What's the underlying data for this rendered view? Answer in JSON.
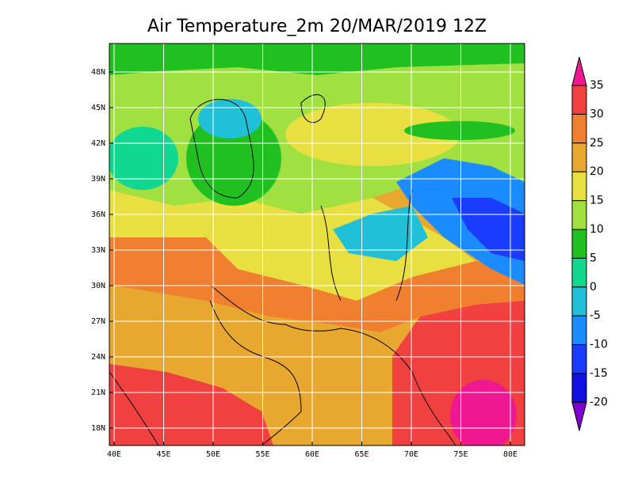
{
  "title": "Air Temperature_2m 20/MAR/2019 12Z",
  "lon_ticks": [
    "40E",
    "45E",
    "50E",
    "55E",
    "60E",
    "65E",
    "70E",
    "75E",
    "80E"
  ],
  "lat_ticks": [
    "48N",
    "45N",
    "42N",
    "39N",
    "36N",
    "33N",
    "30N",
    "27N",
    "24N",
    "21N",
    "18N"
  ],
  "colorbar": {
    "labels": [
      "35",
      "30",
      "25",
      "20",
      "15",
      "10",
      "5",
      "0",
      "-5",
      "-10",
      "-15",
      "-20"
    ],
    "colors": [
      "#f01890",
      "#f04040",
      "#f08030",
      "#e8a830",
      "#e8e040",
      "#a0e040",
      "#20c020",
      "#10d890",
      "#20c0d8",
      "#1a8cff",
      "#1a3cff",
      "#1010e0",
      "#8000d0"
    ]
  }
}
